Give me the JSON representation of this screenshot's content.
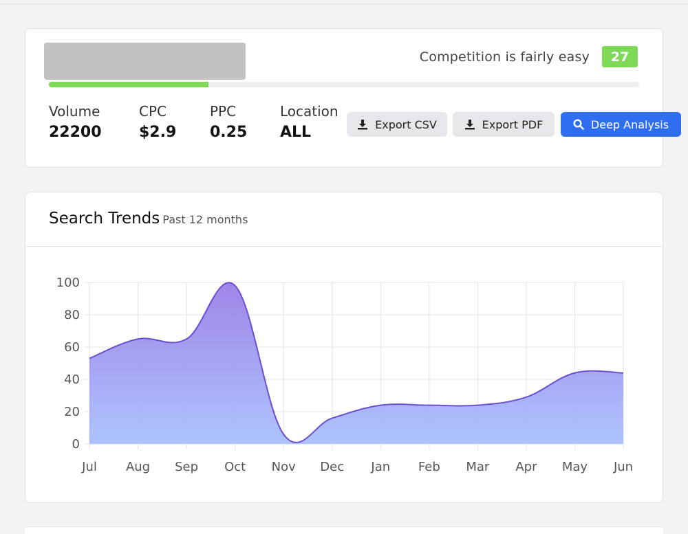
{
  "summary": {
    "competition_text": "Competition is fairly easy",
    "difficulty_score": "27",
    "difficulty_progress": 0.27,
    "colors": {
      "accent_green": "#7ed956",
      "primary_blue": "#2f6ef0"
    },
    "metrics": [
      {
        "label": "Volume",
        "value": "22200"
      },
      {
        "label": "CPC",
        "value": "$2.9"
      },
      {
        "label": "PPC",
        "value": "0.25"
      },
      {
        "label": "Location",
        "value": "ALL"
      }
    ],
    "buttons": {
      "export_csv": "Export CSV",
      "export_pdf": "Export PDF",
      "deep_analysis": "Deep Analysis"
    },
    "icons": {
      "export": "download-icon",
      "deep": "search-icon"
    }
  },
  "trends": {
    "title": "Search Trends",
    "subtitle": "Past 12 months"
  },
  "chart_data": {
    "type": "area",
    "categories": [
      "Jul",
      "Aug",
      "Sep",
      "Oct",
      "Nov",
      "Dec",
      "Jan",
      "Feb",
      "Mar",
      "Apr",
      "May",
      "Jun"
    ],
    "values": [
      53,
      65,
      65,
      98,
      6,
      16,
      24,
      24,
      24,
      29,
      44,
      44
    ],
    "ylim": [
      0,
      100
    ],
    "yticks": [
      0,
      20,
      40,
      60,
      80,
      100
    ],
    "grid": true,
    "colors": {
      "line": "#6a4fd0",
      "fill_top": "#9b7fe6",
      "fill_bottom": "#a9c0ff"
    }
  }
}
